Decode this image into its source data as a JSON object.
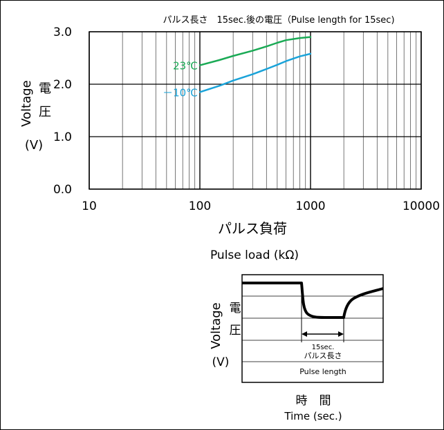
{
  "chart_data": [
    {
      "type": "line",
      "title": "パルス長さ　15sec.後の電圧（Pulse length for 15sec)",
      "xlabel_ja": "パルス負荷",
      "xlabel_en": "Pulse load (kΩ)",
      "ylabel_en": "Voltage",
      "ylabel_ja": "電圧",
      "ylabel_unit": "(V)",
      "x_scale": "log",
      "xlim": [
        10,
        10000
      ],
      "ylim": [
        0,
        3
      ],
      "x_ticks": [
        10,
        100,
        1000,
        10000
      ],
      "x_tick_labels": [
        "10",
        "100",
        "1000",
        "10000"
      ],
      "y_ticks": [
        0,
        1,
        2,
        3
      ],
      "y_tick_labels": [
        "0.0",
        "1.0",
        "2.0",
        "3.0"
      ],
      "grid": true,
      "series": [
        {
          "name": "23℃",
          "color": "#1aaa55",
          "x": [
            100,
            150,
            200,
            300,
            400,
            500,
            600,
            800,
            1000
          ],
          "y": [
            2.36,
            2.46,
            2.54,
            2.64,
            2.72,
            2.79,
            2.84,
            2.88,
            2.9
          ]
        },
        {
          "name": "－10℃",
          "color": "#1aa3d9",
          "x": [
            100,
            150,
            200,
            300,
            400,
            500,
            600,
            800,
            1000
          ],
          "y": [
            1.85,
            1.97,
            2.07,
            2.19,
            2.29,
            2.37,
            2.44,
            2.53,
            2.58
          ]
        }
      ]
    },
    {
      "type": "line",
      "ylabel_en": "Voltage",
      "ylabel_ja": "電圧",
      "ylabel_unit": "(V)",
      "xlabel_ja": "時　間",
      "xlabel_en": "Time (sec.)",
      "annotation_line1": "15sec.",
      "annotation_line2": "パルス長さ",
      "annotation_en": "Pulse length"
    }
  ]
}
